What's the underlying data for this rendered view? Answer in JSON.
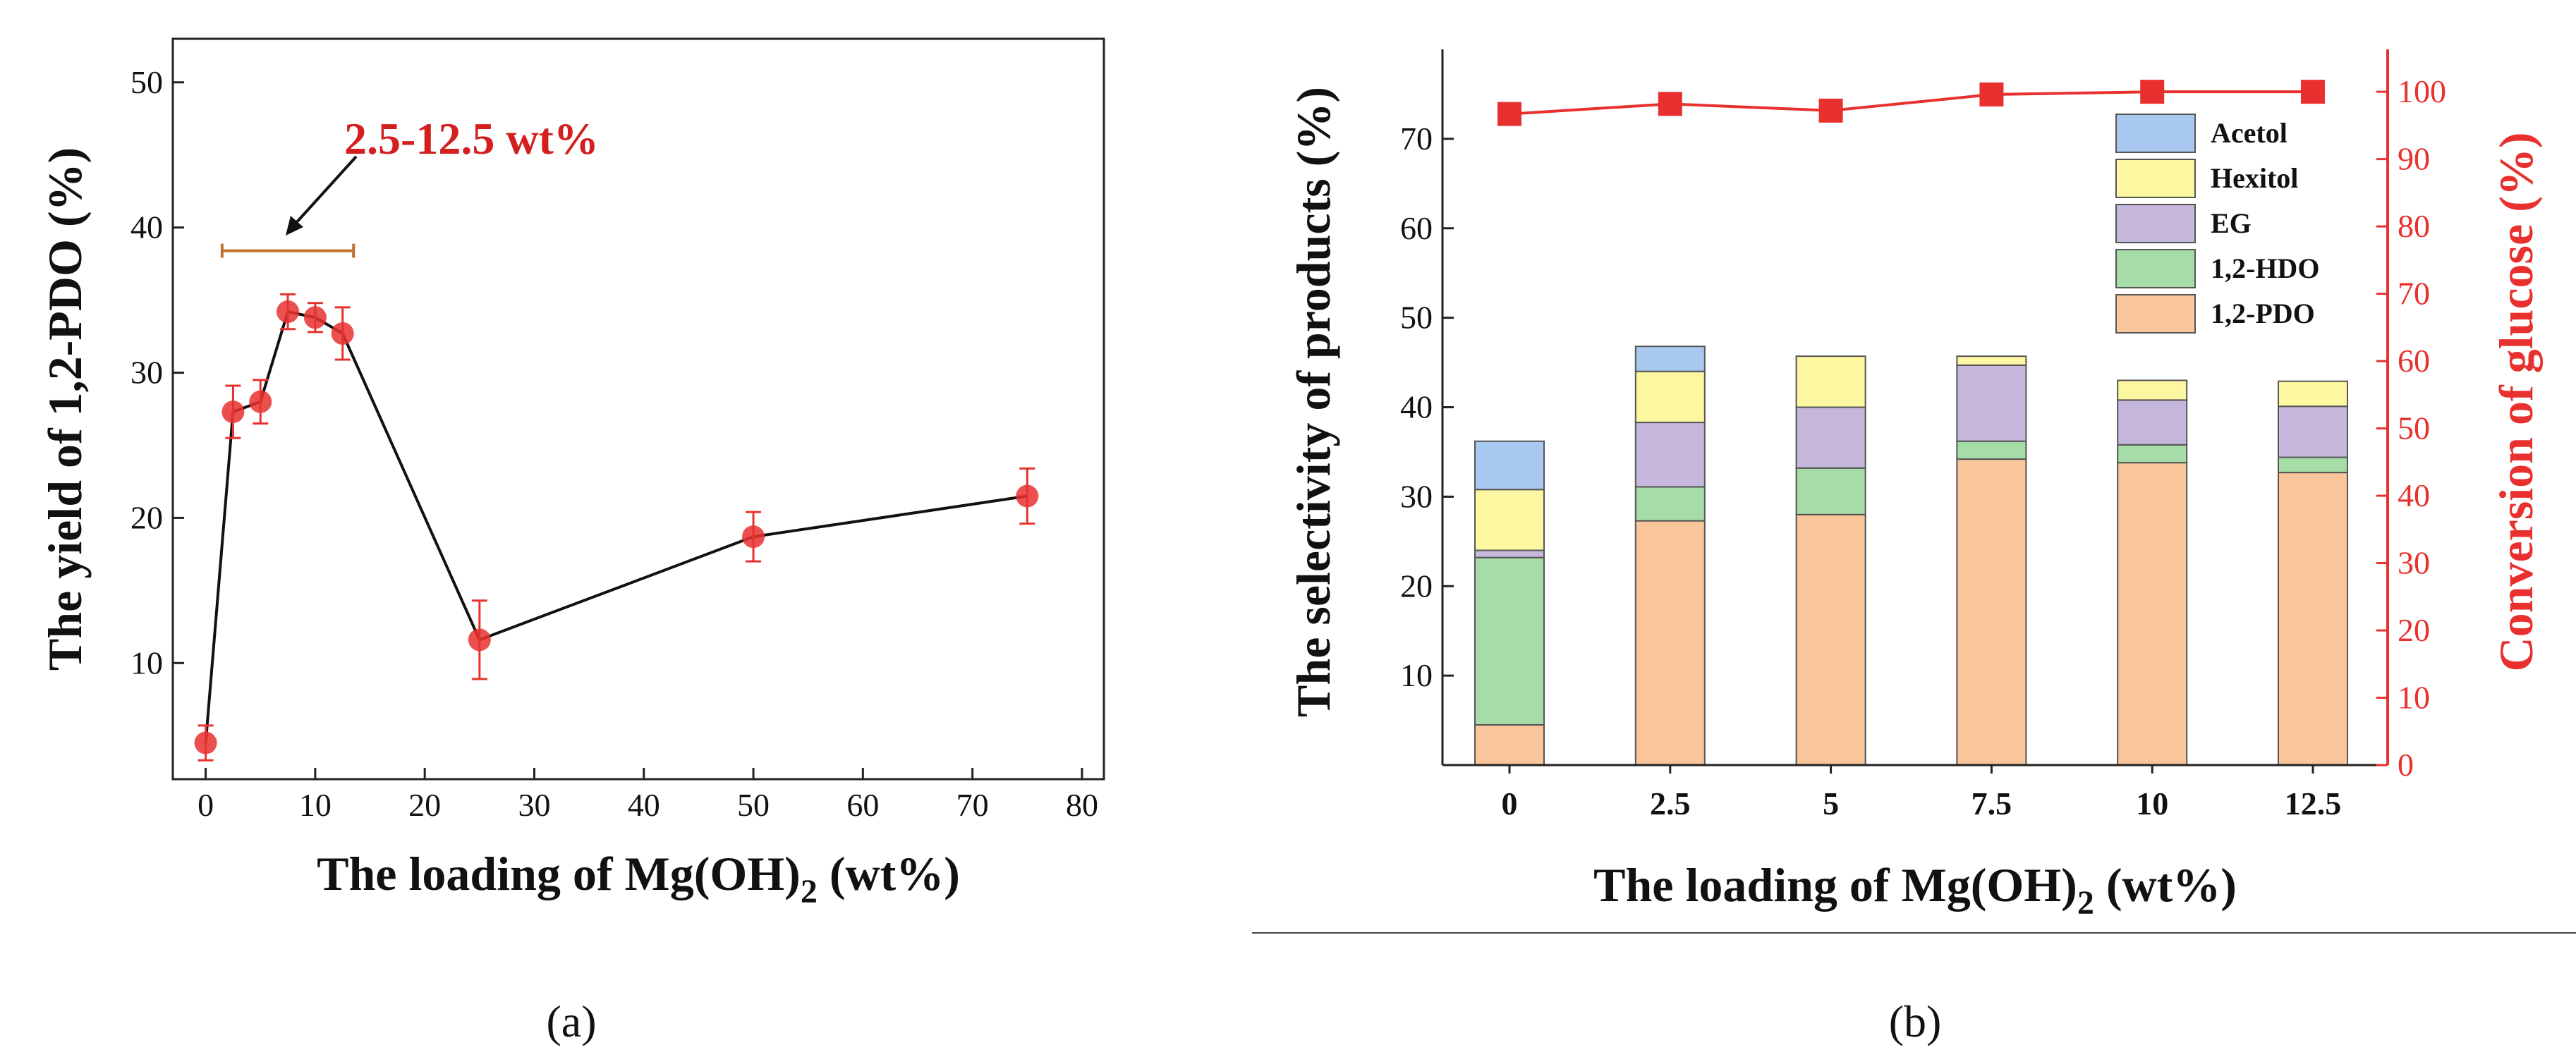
{
  "colors": {
    "red": "#e8312f",
    "dark_red": "#d41f1f",
    "bracket": "#c0722e",
    "acetol": "#a9c8ef",
    "hexitol": "#fdf7a2",
    "eg": "#c6b7dc",
    "hdo": "#a6dca8",
    "pdo": "#f9c59b"
  },
  "chart_data": [
    {
      "type": "line",
      "panel_label": "(a)",
      "xlabel_main": "The loading of Mg(OH)",
      "xlabel_sub": "2",
      "xlabel_tail": " (wt%)",
      "ylabel": "The yield of 1,2-PDO (%)",
      "xlim": [
        -3,
        82
      ],
      "ylim": [
        2,
        53
      ],
      "xticks": [
        0,
        10,
        20,
        30,
        40,
        50,
        60,
        70,
        80
      ],
      "yticks": [
        10,
        20,
        30,
        40,
        50
      ],
      "series": [
        {
          "name": "1,2-PDO yield",
          "x": [
            0,
            2.5,
            5,
            7.5,
            10,
            12.5,
            25,
            50,
            75
          ],
          "y": [
            4.5,
            27.3,
            28.0,
            34.2,
            33.8,
            32.7,
            11.6,
            18.7,
            21.5
          ],
          "err": [
            1.2,
            1.8,
            1.5,
            1.2,
            1.0,
            1.8,
            2.7,
            1.7,
            1.9
          ]
        }
      ],
      "annotation": {
        "text": "2.5-12.5 wt%",
        "range": [
          1.5,
          13.5
        ],
        "bracket_y": 38.4
      }
    },
    {
      "type": "bar",
      "stacked": true,
      "panel_label": "(b)",
      "xlabel_main": "The loading of Mg(OH)",
      "xlabel_sub": "2",
      "xlabel_tail": " (wt%)",
      "ylabel": "The selectivity of products (%)",
      "ylabel_right": "Conversion of glucose (%)",
      "categories": [
        "0",
        "2.5",
        "5",
        "7.5",
        "10",
        "12.5"
      ],
      "ylim": [
        0,
        80
      ],
      "yticks": [
        10,
        20,
        30,
        40,
        50,
        60,
        70
      ],
      "ylim_right": [
        0,
        106.3
      ],
      "yticks_right": [
        0,
        10,
        20,
        30,
        40,
        50,
        60,
        70,
        80,
        90,
        100
      ],
      "series": [
        {
          "name": "1,2-PDO",
          "color_key": "pdo",
          "values": [
            4.5,
            27.3,
            28.0,
            34.2,
            33.8,
            32.7
          ]
        },
        {
          "name": "1,2-HDO",
          "color_key": "hdo",
          "values": [
            18.7,
            3.8,
            5.2,
            2.0,
            2.0,
            1.7
          ]
        },
        {
          "name": "EG",
          "color_key": "eg",
          "values": [
            0.8,
            7.2,
            6.8,
            8.5,
            5.0,
            5.7
          ]
        },
        {
          "name": "Hexitol",
          "color_key": "hexitol",
          "values": [
            6.8,
            5.7,
            5.7,
            1.0,
            2.2,
            2.8
          ]
        },
        {
          "name": "Acetol",
          "color_key": "acetol",
          "values": [
            5.4,
            2.8,
            0.0,
            0.0,
            0.0,
            0.0
          ]
        }
      ],
      "legend_order": [
        "Acetol",
        "Hexitol",
        "EG",
        "1,2-HDO",
        "1,2-PDO"
      ],
      "conversion": {
        "name": "Conversion of glucose",
        "values": [
          96.7,
          98.2,
          97.2,
          99.6,
          100.0,
          100.0
        ]
      }
    }
  ]
}
